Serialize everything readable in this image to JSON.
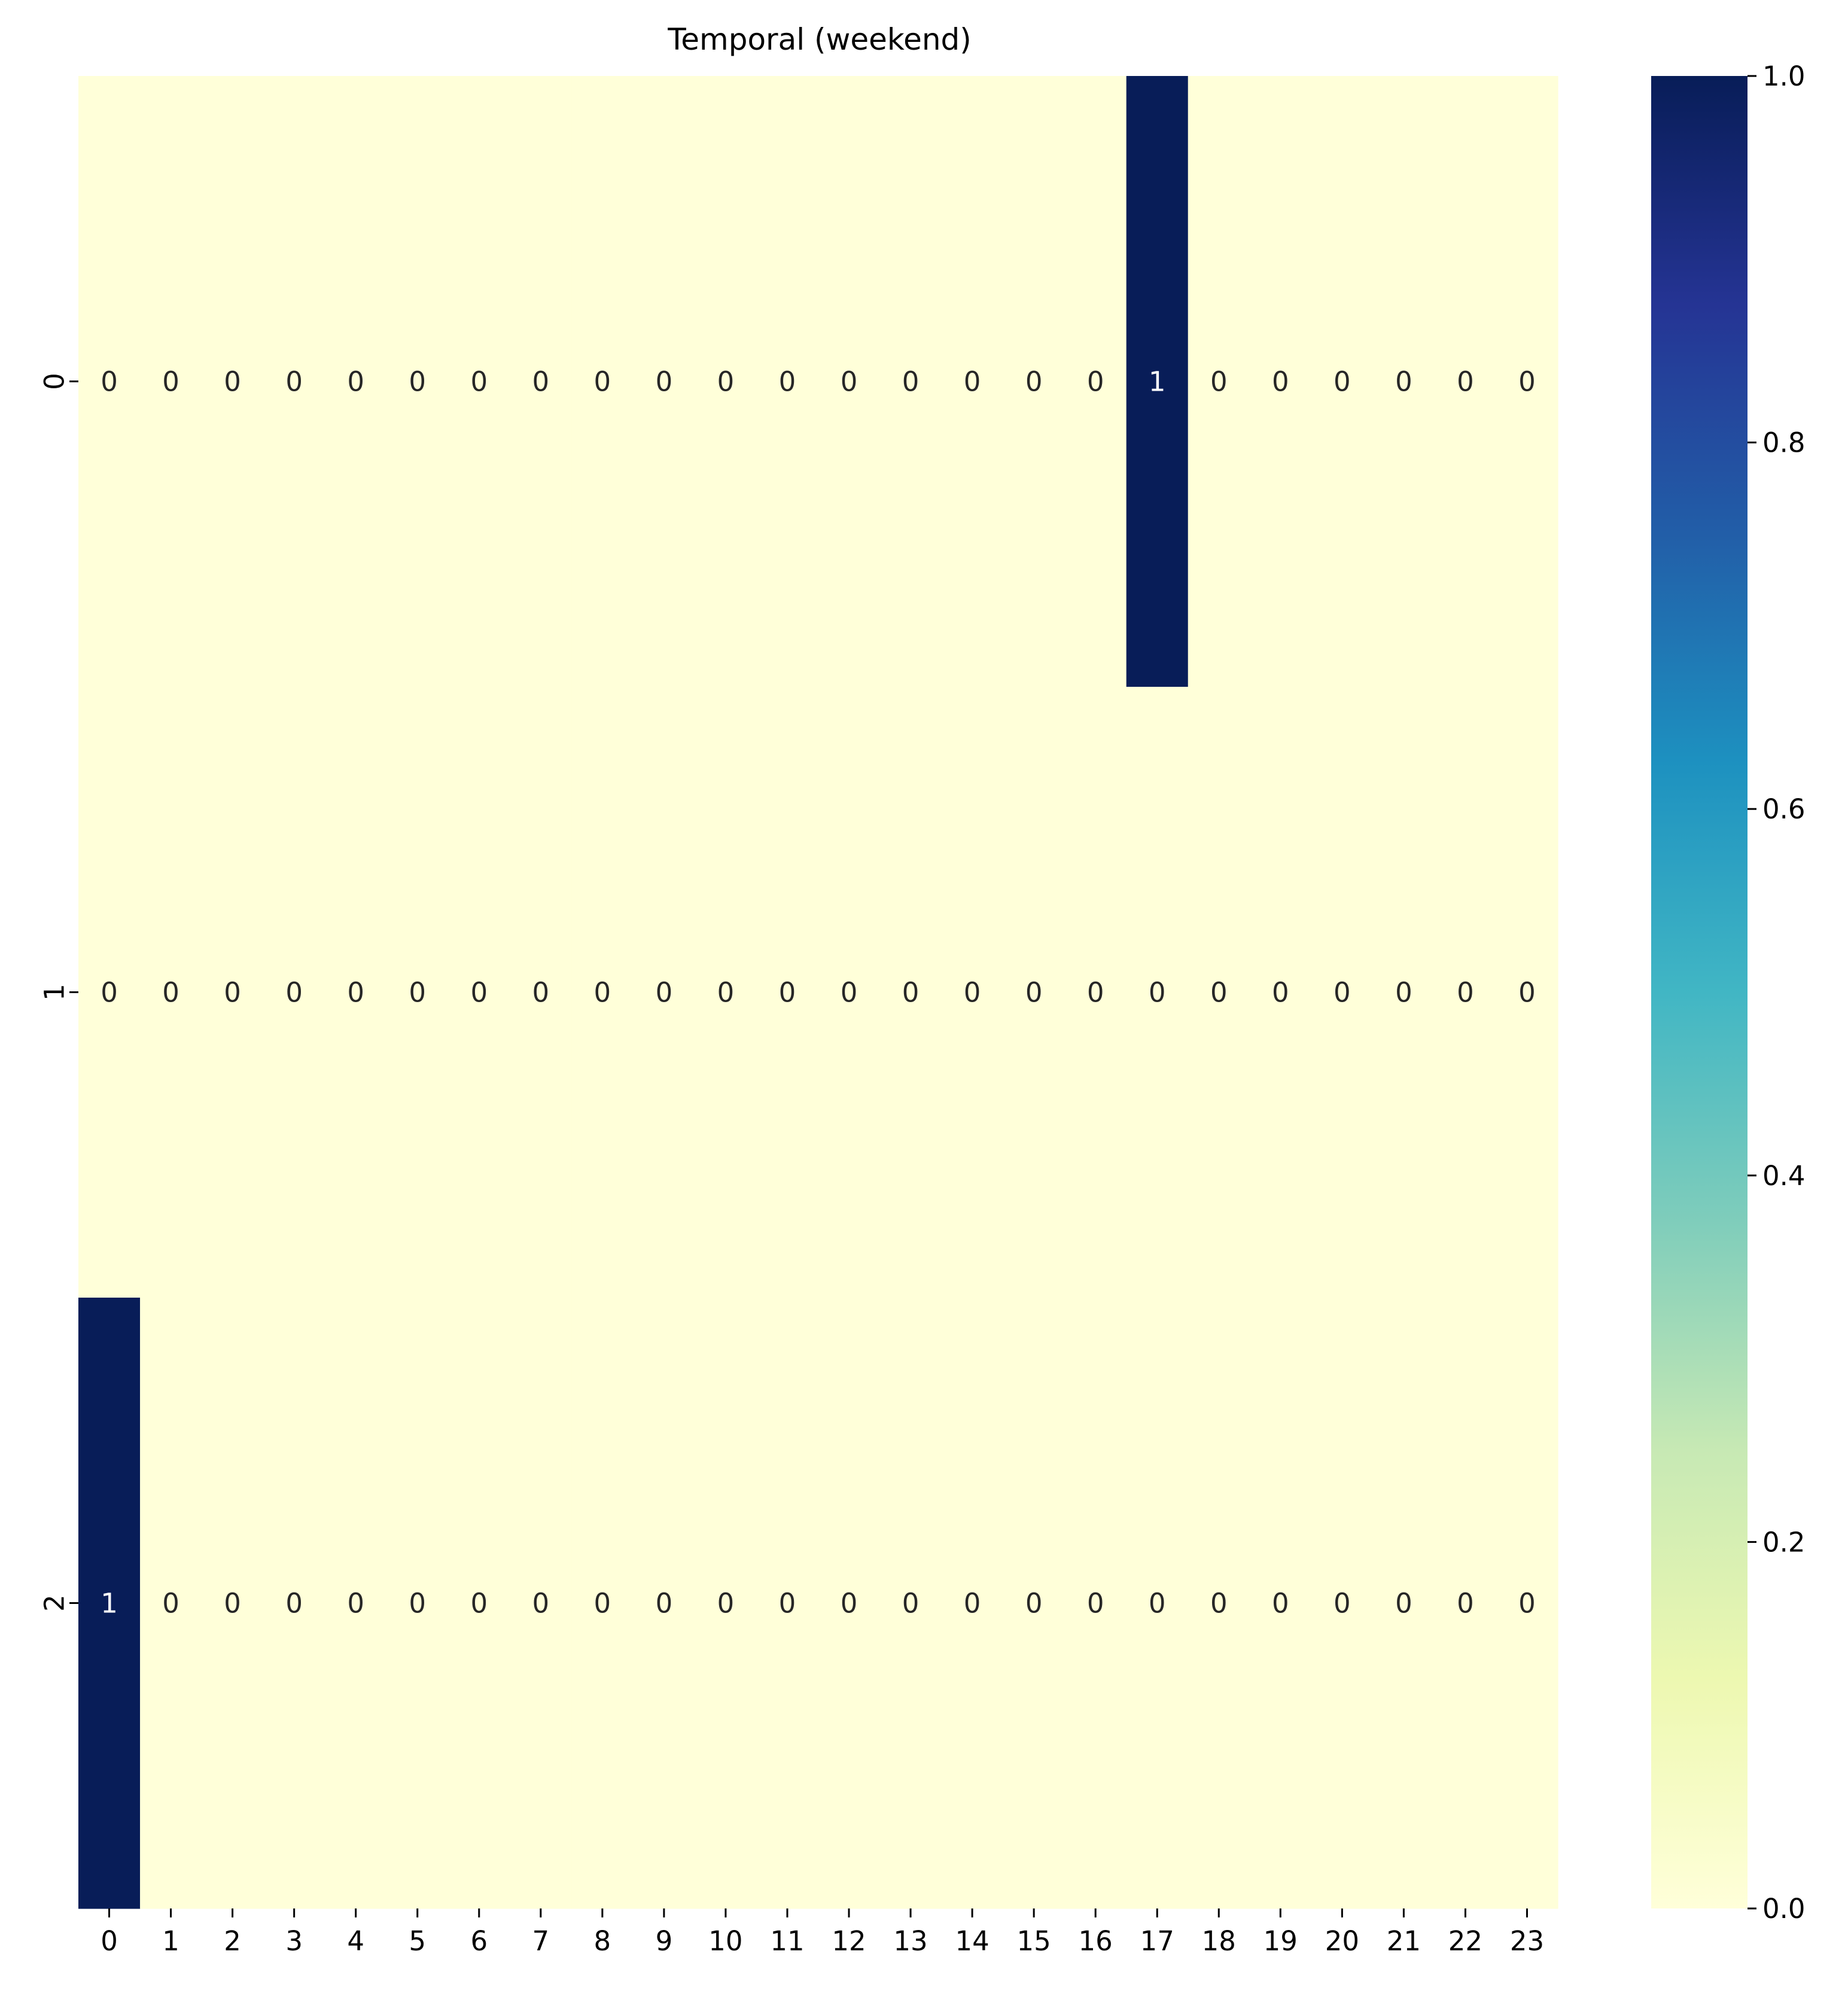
{
  "chart_data": {
    "type": "heatmap",
    "title": "Temporal (weekend)",
    "xlabel": "",
    "ylabel": "",
    "x_categories": [
      "0",
      "1",
      "2",
      "3",
      "4",
      "5",
      "6",
      "7",
      "8",
      "9",
      "10",
      "11",
      "12",
      "13",
      "14",
      "15",
      "16",
      "17",
      "18",
      "19",
      "20",
      "21",
      "22",
      "23"
    ],
    "y_categories": [
      "0",
      "1",
      "2"
    ],
    "values": [
      [
        0,
        0,
        0,
        0,
        0,
        0,
        0,
        0,
        0,
        0,
        0,
        0,
        0,
        0,
        0,
        0,
        0,
        1,
        0,
        0,
        0,
        0,
        0,
        0
      ],
      [
        0,
        0,
        0,
        0,
        0,
        0,
        0,
        0,
        0,
        0,
        0,
        0,
        0,
        0,
        0,
        0,
        0,
        0,
        0,
        0,
        0,
        0,
        0,
        0
      ],
      [
        1,
        0,
        0,
        0,
        0,
        0,
        0,
        0,
        0,
        0,
        0,
        0,
        0,
        0,
        0,
        0,
        0,
        0,
        0,
        0,
        0,
        0,
        0,
        0
      ]
    ],
    "annotated": true,
    "colormap": "YlGnBu",
    "color_low": "#ffffd9",
    "color_high": "#081d58",
    "colorbar": {
      "range": [
        0.0,
        1.0
      ],
      "ticks": [
        "0.0",
        "0.2",
        "0.4",
        "0.6",
        "0.8",
        "1.0"
      ]
    }
  }
}
